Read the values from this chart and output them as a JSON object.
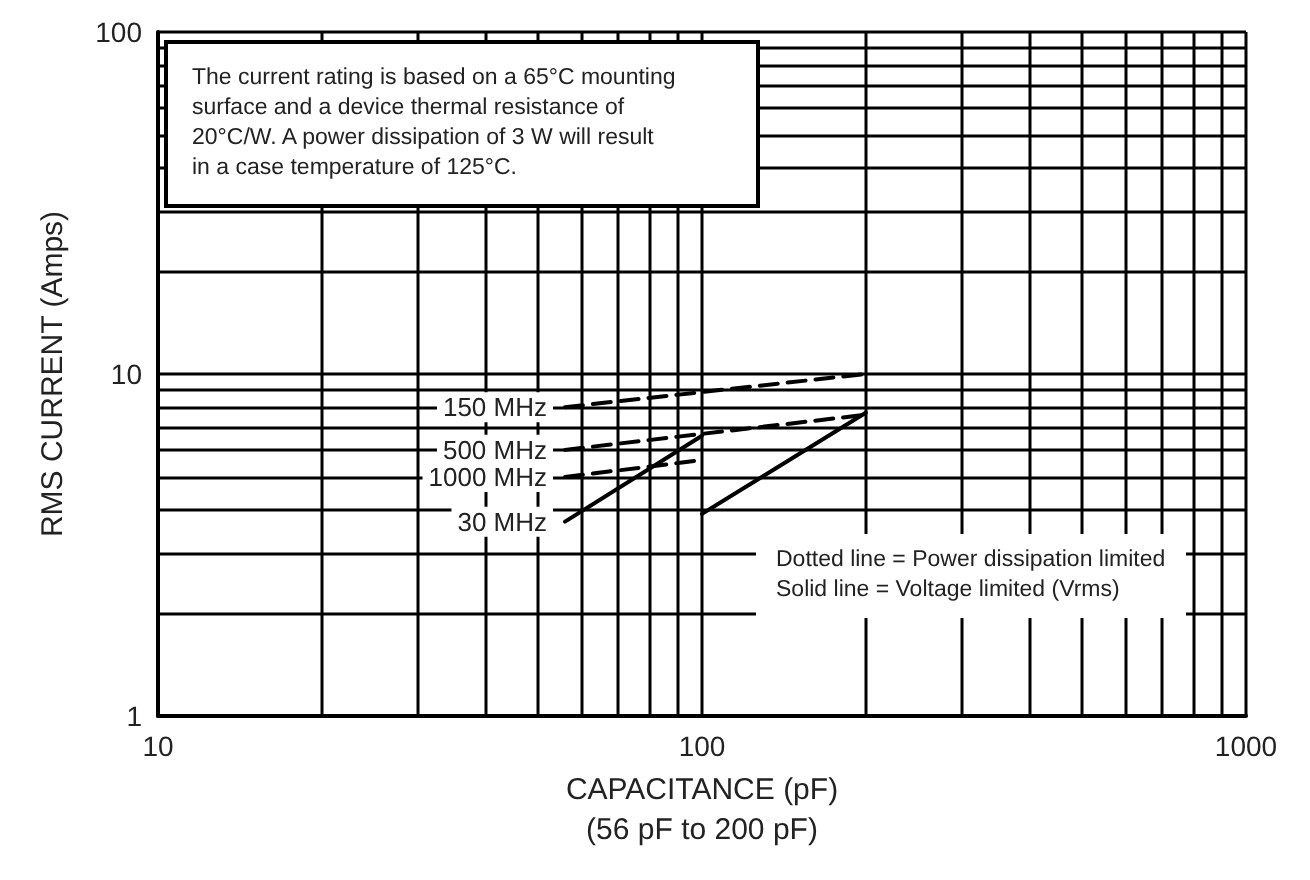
{
  "chart_data": {
    "type": "line",
    "xlabel": "CAPACITANCE (pF)\n(56 pF to 200 pF)",
    "ylabel": "RMS CURRENT (Amps)",
    "log": "xy",
    "grid": true,
    "legend": false,
    "marker": "none",
    "xlim": [
      10,
      1000
    ],
    "ylim": [
      1,
      100
    ],
    "xticks": [
      10,
      {
        "value": 20,
        "label": null
      },
      {
        "value": 30,
        "label": null
      },
      {
        "value": 40,
        "label": null
      },
      {
        "value": 50,
        "label": null
      },
      {
        "value": 60,
        "label": null
      },
      {
        "value": 70,
        "label": null
      },
      {
        "value": 80,
        "label": null
      },
      {
        "value": 90,
        "label": null
      },
      100,
      {
        "value": 200,
        "label": null
      },
      {
        "value": 300,
        "label": null
      },
      {
        "value": 400,
        "label": null
      },
      {
        "value": 500,
        "label": null
      },
      {
        "value": 600,
        "label": null
      },
      {
        "value": 700,
        "label": null
      },
      {
        "value": 800,
        "label": null
      },
      {
        "value": 900,
        "label": null
      },
      1000
    ],
    "yticks": [
      1,
      {
        "value": 2,
        "label": null
      },
      {
        "value": 3,
        "label": null
      },
      {
        "value": 4,
        "label": null
      },
      {
        "value": 5,
        "label": null
      },
      {
        "value": 6,
        "label": null
      },
      {
        "value": 7,
        "label": null
      },
      {
        "value": 8,
        "label": null
      },
      {
        "value": 9,
        "label": null
      },
      10,
      {
        "value": 20,
        "label": null
      },
      {
        "value": 30,
        "label": null
      },
      {
        "value": 40,
        "label": null
      },
      {
        "value": 50,
        "label": null
      },
      {
        "value": 60,
        "label": null
      },
      {
        "value": 70,
        "label": null
      },
      {
        "value": 80,
        "label": null
      },
      {
        "value": 90,
        "label": null
      },
      100
    ],
    "series": [
      {
        "name": "150 MHz",
        "color": "#000000",
        "line_style": "dashed",
        "x": [
          56,
          200
        ],
        "values": [
          8.0,
          10
        ]
      },
      {
        "name": "500 MHz",
        "color": "#000000",
        "line_style": "dashed",
        "x": [
          56,
          200
        ],
        "values": [
          6.0,
          7.6
        ]
      },
      {
        "name": "1000 MHz",
        "color": "#000000",
        "line_style": "dashed",
        "x": [
          56,
          100
        ],
        "values": [
          5.0,
          5.6
        ]
      },
      {
        "name": "30 MHz",
        "color": "#000000",
        "line_style": "solid",
        "x": [
          56,
          100
        ],
        "values": [
          3.7,
          6.6
        ]
      },
      {
        "color": "#000000",
        "line_style": "solid",
        "x": [
          100,
          200
        ],
        "values": [
          3.9,
          7.7
        ]
      }
    ],
    "annotations": [
      "The current rating is based on a 65°C mounting\nsurface and a device thermal resistance of\n20°C/W. A power dissipation of 3 W will result\nin a case temperature of 125°C.",
      "Dotted line = Power dissipation limited\nSolid line = Voltage limited (Vrms)"
    ]
  }
}
